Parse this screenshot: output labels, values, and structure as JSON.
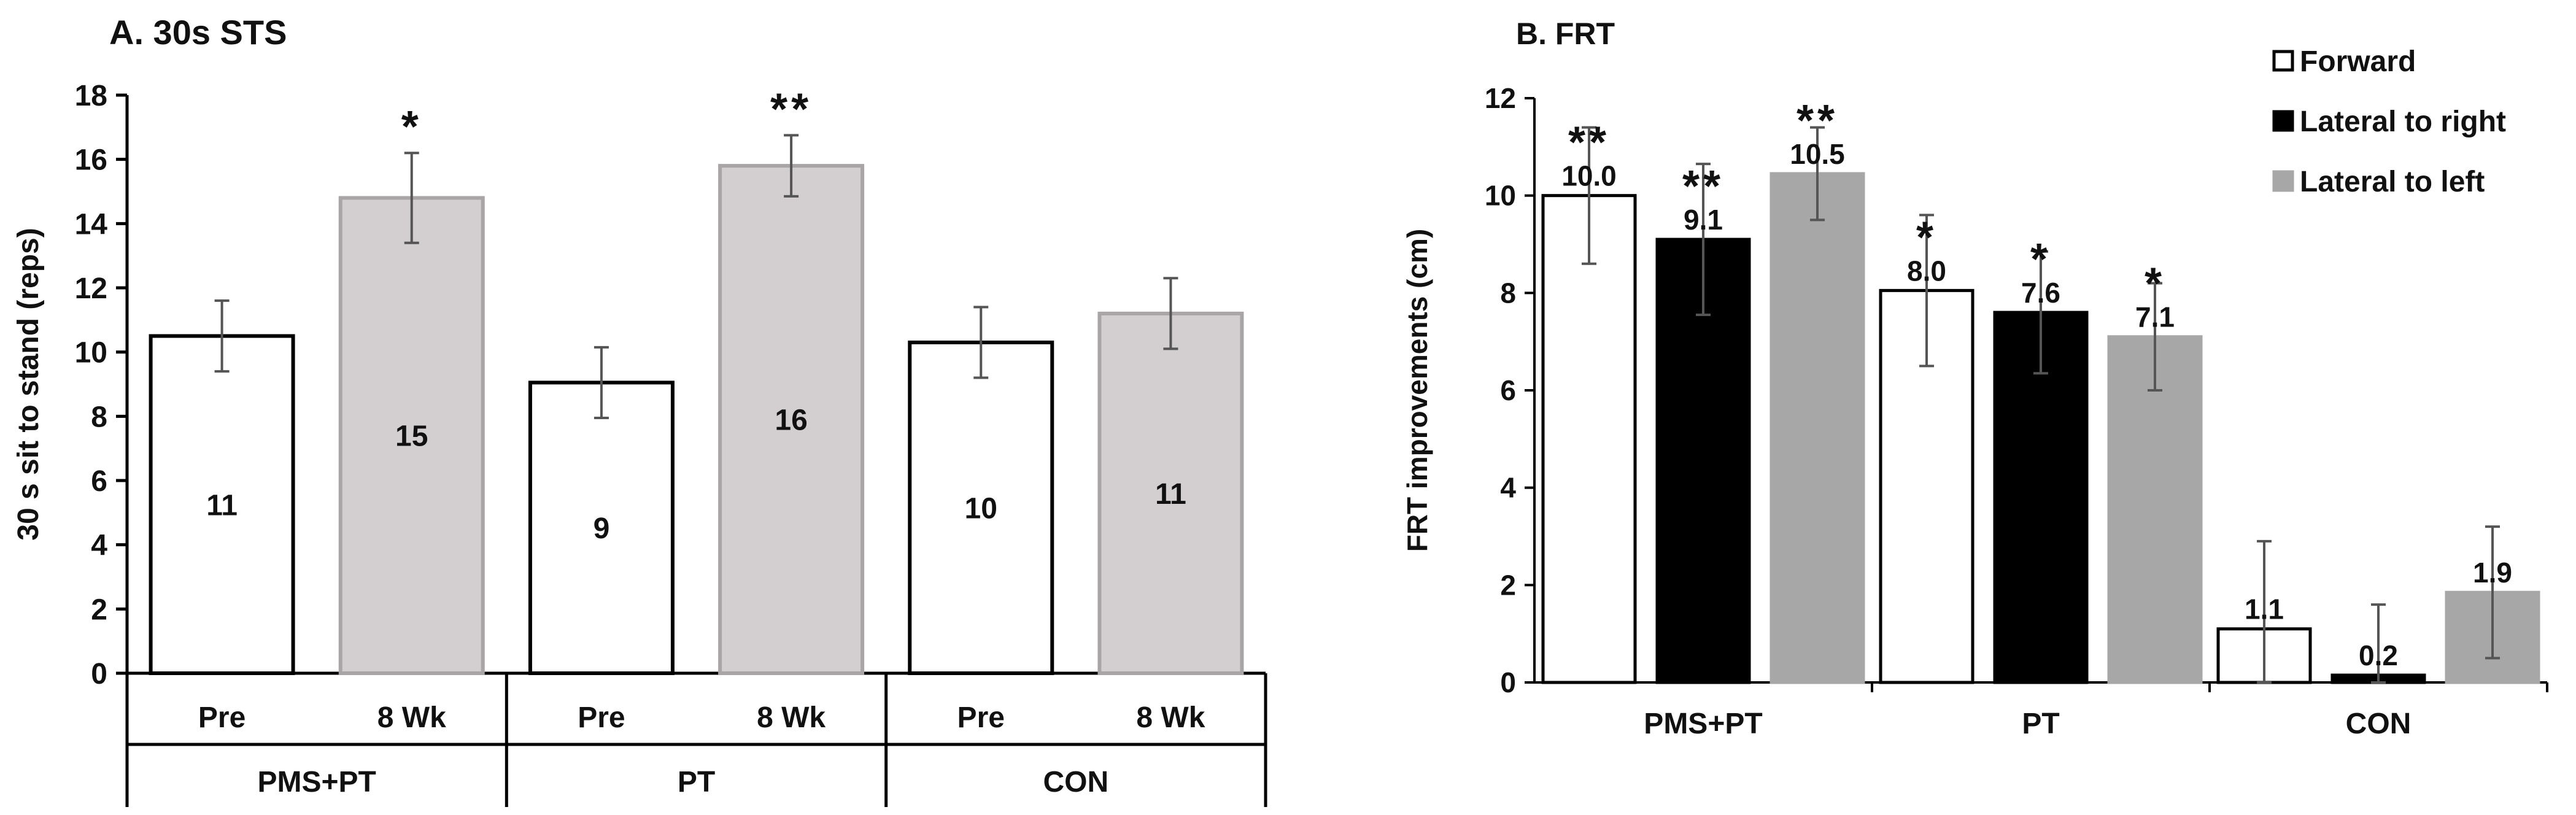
{
  "chart_data": [
    {
      "id": "sts",
      "type": "bar",
      "title": "A. 30s STS",
      "xlabel": "",
      "ylabel": "30 s sit to stand (reps)",
      "ylim": [
        0,
        18
      ],
      "yticks": [
        0,
        2,
        4,
        6,
        8,
        10,
        12,
        14,
        16,
        18
      ],
      "y_tick_labels": [
        "0",
        "2",
        "4",
        "6",
        "8",
        "10",
        "12",
        "14",
        "16",
        "18"
      ],
      "grid": false,
      "groups": [
        "PMS+PT",
        "PT",
        "CON"
      ],
      "categories": [
        "Pre",
        "8 Wk"
      ],
      "bar_colors": [
        "#ffffff",
        "#d3cfd0"
      ],
      "bars": [
        {
          "group": "PMS+PT",
          "category": "Pre",
          "value": 10.5,
          "error": 1.1,
          "label": "11",
          "sig": ""
        },
        {
          "group": "PMS+PT",
          "category": "8 Wk",
          "value": 14.8,
          "error": 1.4,
          "label": "15",
          "sig": "*"
        },
        {
          "group": "PT",
          "category": "Pre",
          "value": 9.05,
          "error": 1.1,
          "label": "9",
          "sig": ""
        },
        {
          "group": "PT",
          "category": "8 Wk",
          "value": 15.8,
          "error": 0.95,
          "label": "16",
          "sig": "**"
        },
        {
          "group": "CON",
          "category": "Pre",
          "value": 10.3,
          "error": 1.1,
          "label": "10",
          "sig": ""
        },
        {
          "group": "CON",
          "category": "8 Wk",
          "value": 11.2,
          "error": 1.1,
          "label": "11",
          "sig": ""
        }
      ]
    },
    {
      "id": "frt",
      "type": "bar",
      "title": "B. FRT",
      "xlabel": "",
      "ylabel": "FRT improvements (cm)",
      "ylim": [
        0,
        12
      ],
      "yticks": [
        0,
        2,
        4,
        6,
        8,
        10,
        12
      ],
      "y_tick_labels": [
        "0",
        "2",
        "4",
        "6",
        "8",
        "10",
        "12"
      ],
      "grid": false,
      "legend_position": "top-right",
      "categories": [
        "PMS+PT",
        "PT",
        "CON"
      ],
      "series": [
        {
          "name": "Forward",
          "color": "#ffffff",
          "values": [
            10.0,
            8.05,
            1.1
          ],
          "errors": [
            1.4,
            1.55,
            1.8
          ],
          "labels": [
            "10.0",
            "8.0",
            "1.1"
          ],
          "sig": [
            "**",
            "*",
            ""
          ]
        },
        {
          "name": "Lateral to right",
          "color": "#000000",
          "values": [
            9.1,
            7.6,
            0.15
          ],
          "errors": [
            1.55,
            1.25,
            1.45
          ],
          "labels": [
            "9.1",
            "7.6",
            "0.2"
          ],
          "sig": [
            "**",
            "*",
            ""
          ]
        },
        {
          "name": "Lateral to left",
          "color": "#a7a7a7",
          "values": [
            10.45,
            7.1,
            1.85
          ],
          "errors": [
            0.95,
            1.1,
            1.35
          ],
          "labels": [
            "10.5",
            "7.1",
            "1.9"
          ],
          "sig": [
            "**",
            "*",
            ""
          ]
        }
      ]
    }
  ]
}
